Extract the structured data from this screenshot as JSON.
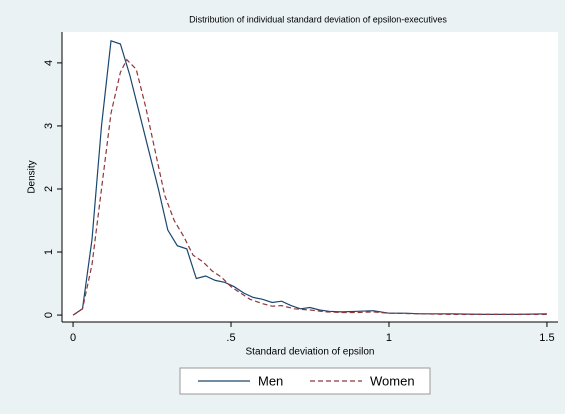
{
  "chart_data": {
    "type": "line",
    "title": "Distribution of individual standard deviation of epsilon-executives",
    "x_label": "Standard deviation of epsilon",
    "y_label": "Density",
    "xlim": [
      -0.035,
      1.535
    ],
    "ylim": [
      -0.11,
      4.49
    ],
    "xticks": [
      0,
      {
        "value": 0.5,
        "label": ".5"
      },
      1,
      1.5
    ],
    "yticks": [
      0,
      1,
      2,
      3,
      4
    ],
    "legend": "bottom",
    "series": [
      {
        "name": "Men",
        "color": "#1a476f",
        "dash": "solid",
        "x": [
          0,
          0.03,
          0.06,
          0.09,
          0.12,
          0.15,
          0.18,
          0.21,
          0.24,
          0.27,
          0.3,
          0.33,
          0.36,
          0.39,
          0.42,
          0.45,
          0.48,
          0.51,
          0.54,
          0.57,
          0.6,
          0.63,
          0.66,
          0.69,
          0.72,
          0.75,
          0.78,
          0.81,
          0.85,
          0.9,
          0.95,
          1.0,
          1.05,
          1.1,
          1.2,
          1.3,
          1.4,
          1.5
        ],
        "values": [
          0,
          0.1,
          1.2,
          3.0,
          4.35,
          4.3,
          3.8,
          3.2,
          2.6,
          2.0,
          1.35,
          1.1,
          1.05,
          0.58,
          0.62,
          0.55,
          0.52,
          0.45,
          0.35,
          0.28,
          0.25,
          0.2,
          0.22,
          0.15,
          0.1,
          0.12,
          0.08,
          0.06,
          0.05,
          0.06,
          0.07,
          0.03,
          0.03,
          0.02,
          0.02,
          0.01,
          0.01,
          0.02
        ]
      },
      {
        "name": "Women",
        "color": "#90353b",
        "dash": "dashed",
        "x": [
          0,
          0.03,
          0.06,
          0.09,
          0.12,
          0.15,
          0.17,
          0.2,
          0.23,
          0.26,
          0.29,
          0.32,
          0.35,
          0.38,
          0.41,
          0.44,
          0.47,
          0.5,
          0.53,
          0.56,
          0.6,
          0.63,
          0.66,
          0.7,
          0.75,
          0.8,
          0.85,
          0.9,
          0.95,
          1.0,
          1.1,
          1.2,
          1.3,
          1.5
        ],
        "values": [
          0,
          0.1,
          0.8,
          2.0,
          3.2,
          3.85,
          4.05,
          3.9,
          3.3,
          2.6,
          1.9,
          1.5,
          1.25,
          0.95,
          0.85,
          0.7,
          0.6,
          0.45,
          0.35,
          0.25,
          0.18,
          0.14,
          0.15,
          0.1,
          0.08,
          0.05,
          0.04,
          0.04,
          0.05,
          0.03,
          0.02,
          0.01,
          0.01,
          0.01
        ]
      }
    ]
  }
}
